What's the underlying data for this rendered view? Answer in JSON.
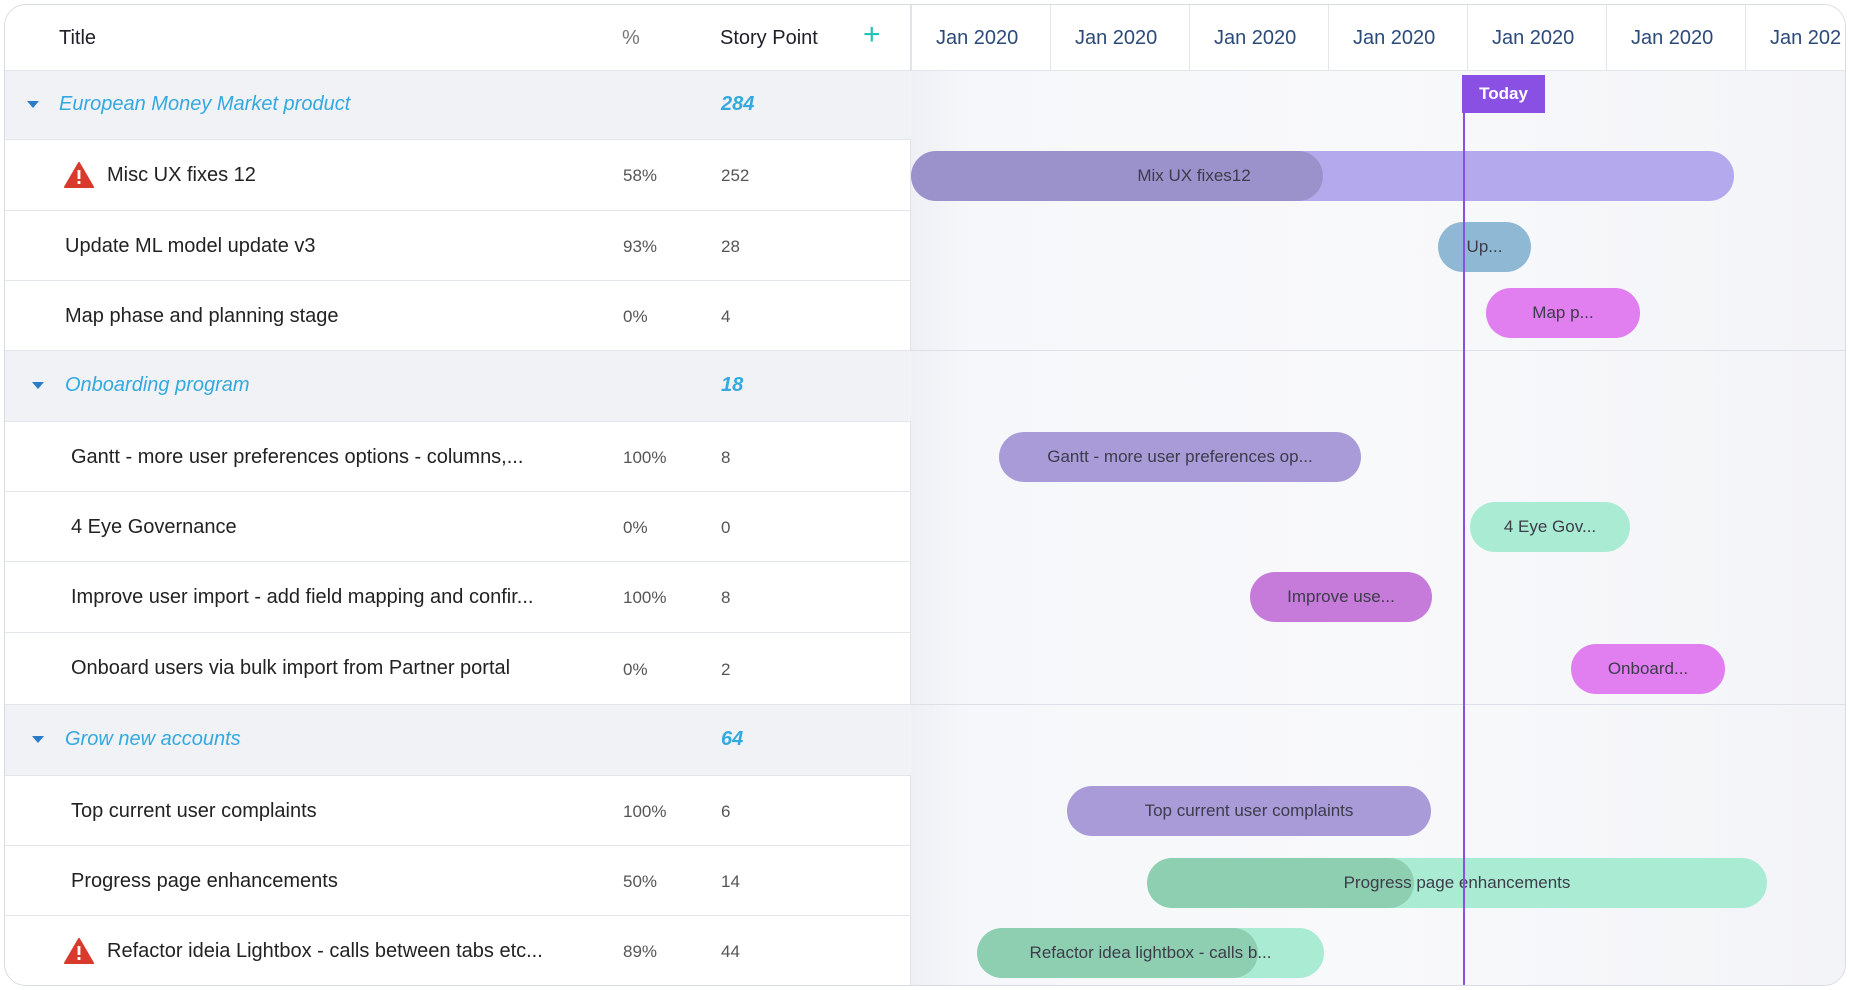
{
  "header": {
    "title": "Title",
    "percent": "%",
    "story_point": "Story Point",
    "add": "+"
  },
  "timeline": {
    "columns": [
      "Jan 2020",
      "Jan 2020",
      "Jan 2020",
      "Jan 2020",
      "Jan 2020",
      "Jan 2020",
      "Jan 202"
    ],
    "today_label": "Today"
  },
  "groups": [
    {
      "title": "European Money Market product",
      "story_points": "284",
      "items": [
        {
          "title": "Misc UX fixes 12",
          "percent": "58%",
          "story_points": "252",
          "warning": true,
          "bar_label": "Mix UX fixes12",
          "progress": 0.5
        },
        {
          "title": "Update ML model update v3",
          "percent": "93%",
          "story_points": "28",
          "warning": false,
          "bar_label": "Up...",
          "progress": 0
        },
        {
          "title": "Map phase and planning stage",
          "percent": "0%",
          "story_points": "4",
          "warning": false,
          "bar_label": "Map p...",
          "progress": 0
        }
      ]
    },
    {
      "title": "Onboarding program",
      "story_points": "18",
      "items": [
        {
          "title": "Gantt - more user preferences options - columns,...",
          "percent": "100%",
          "story_points": "8",
          "warning": false,
          "bar_label": "Gantt - more user preferences op...",
          "progress": 0
        },
        {
          "title": "4 Eye Governance",
          "percent": "0%",
          "story_points": "0",
          "warning": false,
          "bar_label": "4 Eye Gov...",
          "progress": 0
        },
        {
          "title": "Improve user import - add field mapping and confir...",
          "percent": "100%",
          "story_points": "8",
          "warning": false,
          "bar_label": "Improve use...",
          "progress": 0
        },
        {
          "title": "Onboard users via bulk import from Partner portal",
          "percent": "0%",
          "story_points": "2",
          "warning": false,
          "bar_label": "Onboard...",
          "progress": 0
        }
      ]
    },
    {
      "title": "Grow new accounts",
      "story_points": "64",
      "items": [
        {
          "title": "Top current user complaints",
          "percent": "100%",
          "story_points": "6",
          "warning": false,
          "bar_label": "Top current user complaints",
          "progress": 0
        },
        {
          "title": "Progress page enhancements",
          "percent": "50%",
          "story_points": "14",
          "warning": false,
          "bar_label": "Progress page enhancements",
          "progress": 0.43
        },
        {
          "title": "Refactor ideia Lightbox - calls between tabs etc...",
          "percent": "89%",
          "story_points": "44",
          "warning": true,
          "bar_label": "Refactor idea lightbox - calls b...",
          "progress": 0.81
        }
      ]
    }
  ],
  "colors": {
    "group_text": "#33a9e0",
    "today": "#8a4fe3",
    "bar_lavender": "#b3a9ec",
    "bar_lavender_progress": "#9b92cc",
    "bar_blue": "#8fb8d4",
    "bar_pink": "#e17ef0",
    "bar_purple": "#a89bd8",
    "bar_mint": "#a9ecd3",
    "bar_magenta": "#c67ad9",
    "bar_mint_progress": "#8fcfb1"
  }
}
